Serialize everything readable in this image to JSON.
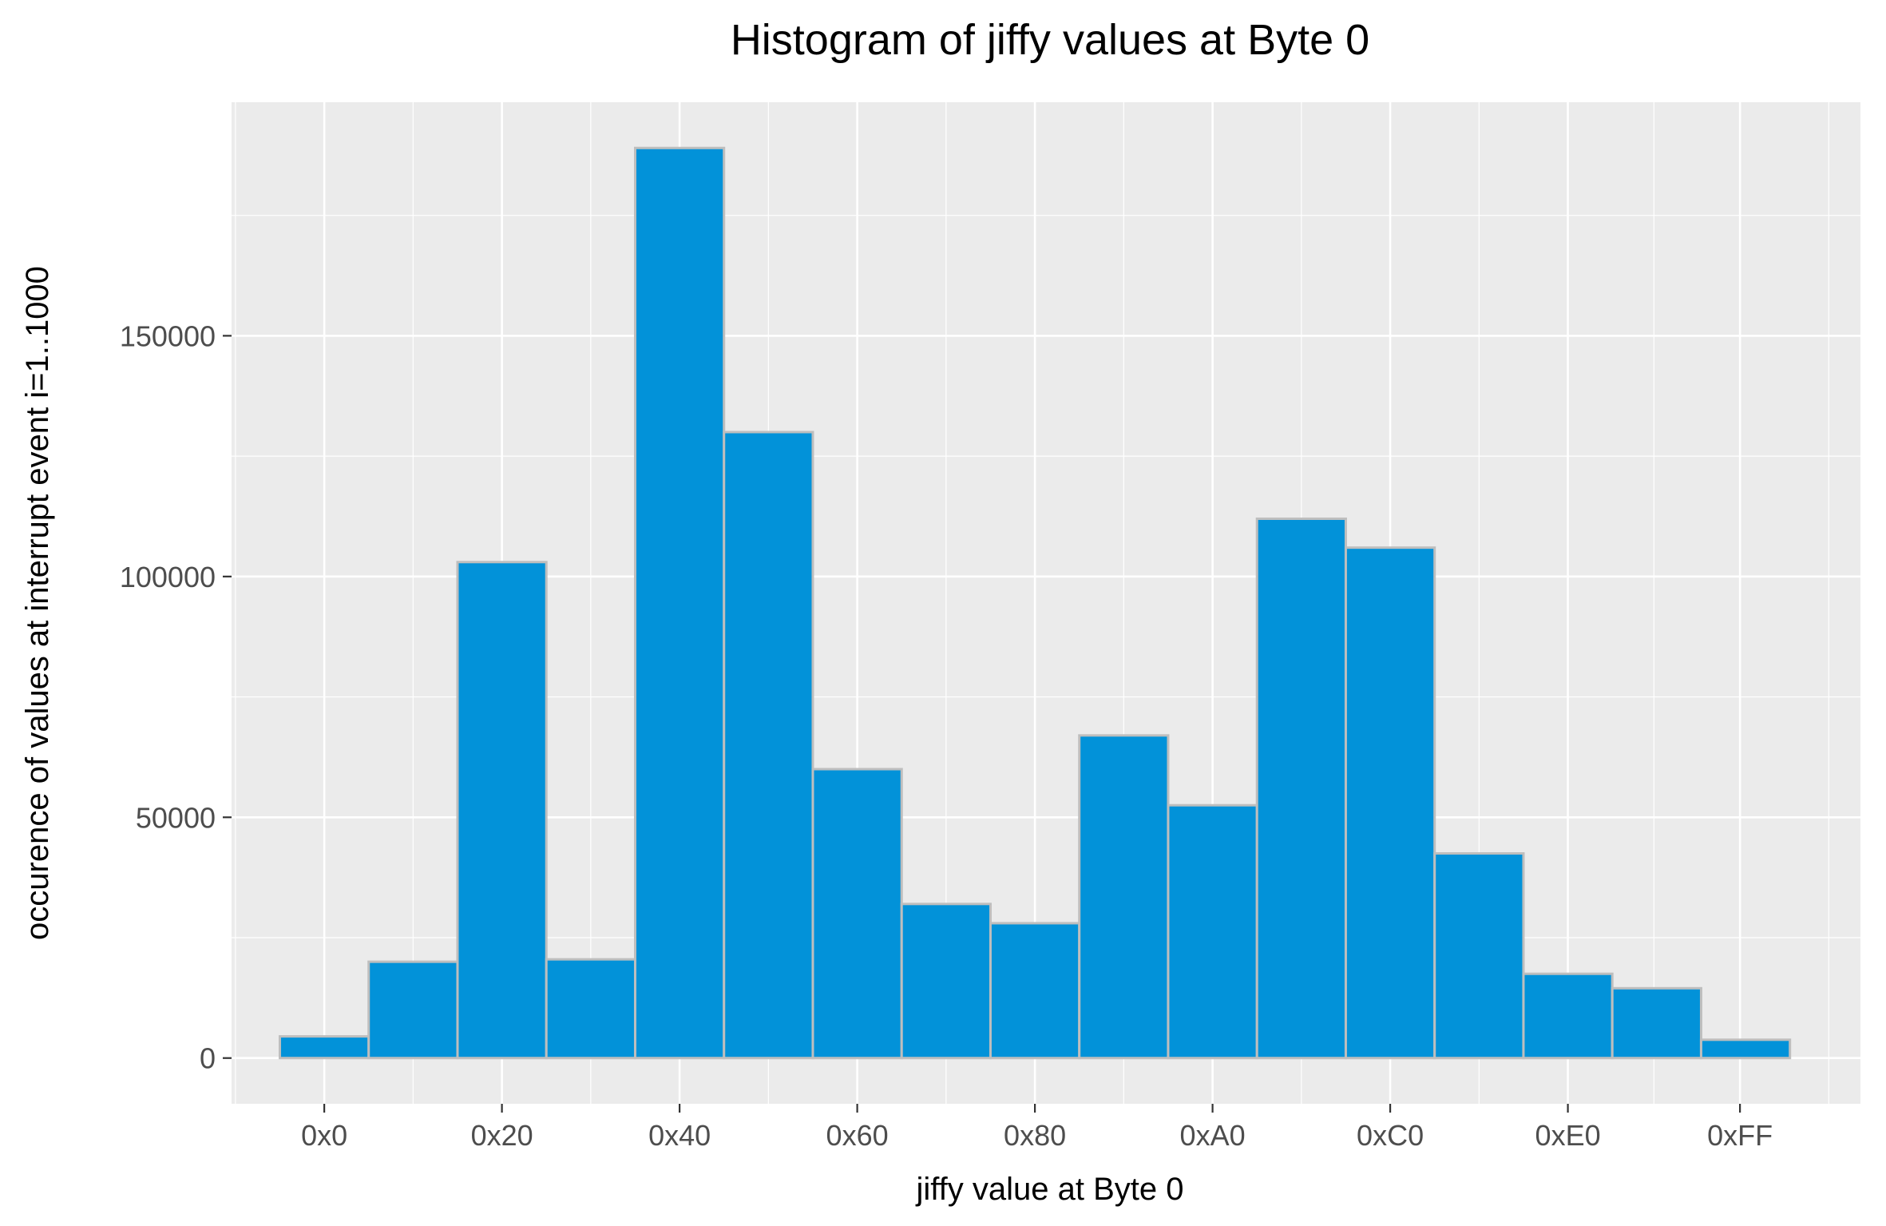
{
  "chart_data": {
    "type": "bar",
    "title": "Histogram of jiffy values at Byte 0",
    "xlabel": "jiffy value at Byte 0",
    "ylabel": "occurence of values at interrupt event i=1..1000",
    "x_ticks": [
      {
        "label": "0x0",
        "value": 0
      },
      {
        "label": "0x20",
        "value": 32
      },
      {
        "label": "0x40",
        "value": 64
      },
      {
        "label": "0x60",
        "value": 96
      },
      {
        "label": "0x80",
        "value": 128
      },
      {
        "label": "0xA0",
        "value": 160
      },
      {
        "label": "0xC0",
        "value": 192
      },
      {
        "label": "0xE0",
        "value": 224
      },
      {
        "label": "0xFF",
        "value": 255
      }
    ],
    "y_ticks": [
      {
        "label": "0",
        "value": 0
      },
      {
        "label": "50000",
        "value": 50000
      },
      {
        "label": "100000",
        "value": 100000
      },
      {
        "label": "150000",
        "value": 150000
      }
    ],
    "bins": [
      {
        "center": 0,
        "value": 4500
      },
      {
        "center": 16,
        "value": 20000
      },
      {
        "center": 32,
        "value": 103000
      },
      {
        "center": 48,
        "value": 20500
      },
      {
        "center": 64,
        "value": 189000
      },
      {
        "center": 80,
        "value": 130000
      },
      {
        "center": 96,
        "value": 60000
      },
      {
        "center": 112,
        "value": 32000
      },
      {
        "center": 128,
        "value": 28000
      },
      {
        "center": 144,
        "value": 67000
      },
      {
        "center": 160,
        "value": 52500
      },
      {
        "center": 176,
        "value": 112000
      },
      {
        "center": 192,
        "value": 106000
      },
      {
        "center": 208,
        "value": 42500
      },
      {
        "center": 224,
        "value": 17500
      },
      {
        "center": 240,
        "value": 14500
      },
      {
        "center": 256,
        "value": 3800
      }
    ],
    "bin_width": 16,
    "xlim": [
      -16.7,
      276.7
    ],
    "ylim": [
      -9500,
      198500
    ],
    "grid": true,
    "colors": {
      "bar_fill": "#0292d9",
      "bar_stroke": "#bebebe",
      "panel_bg": "#ebebeb",
      "grid": "#ffffff"
    }
  }
}
